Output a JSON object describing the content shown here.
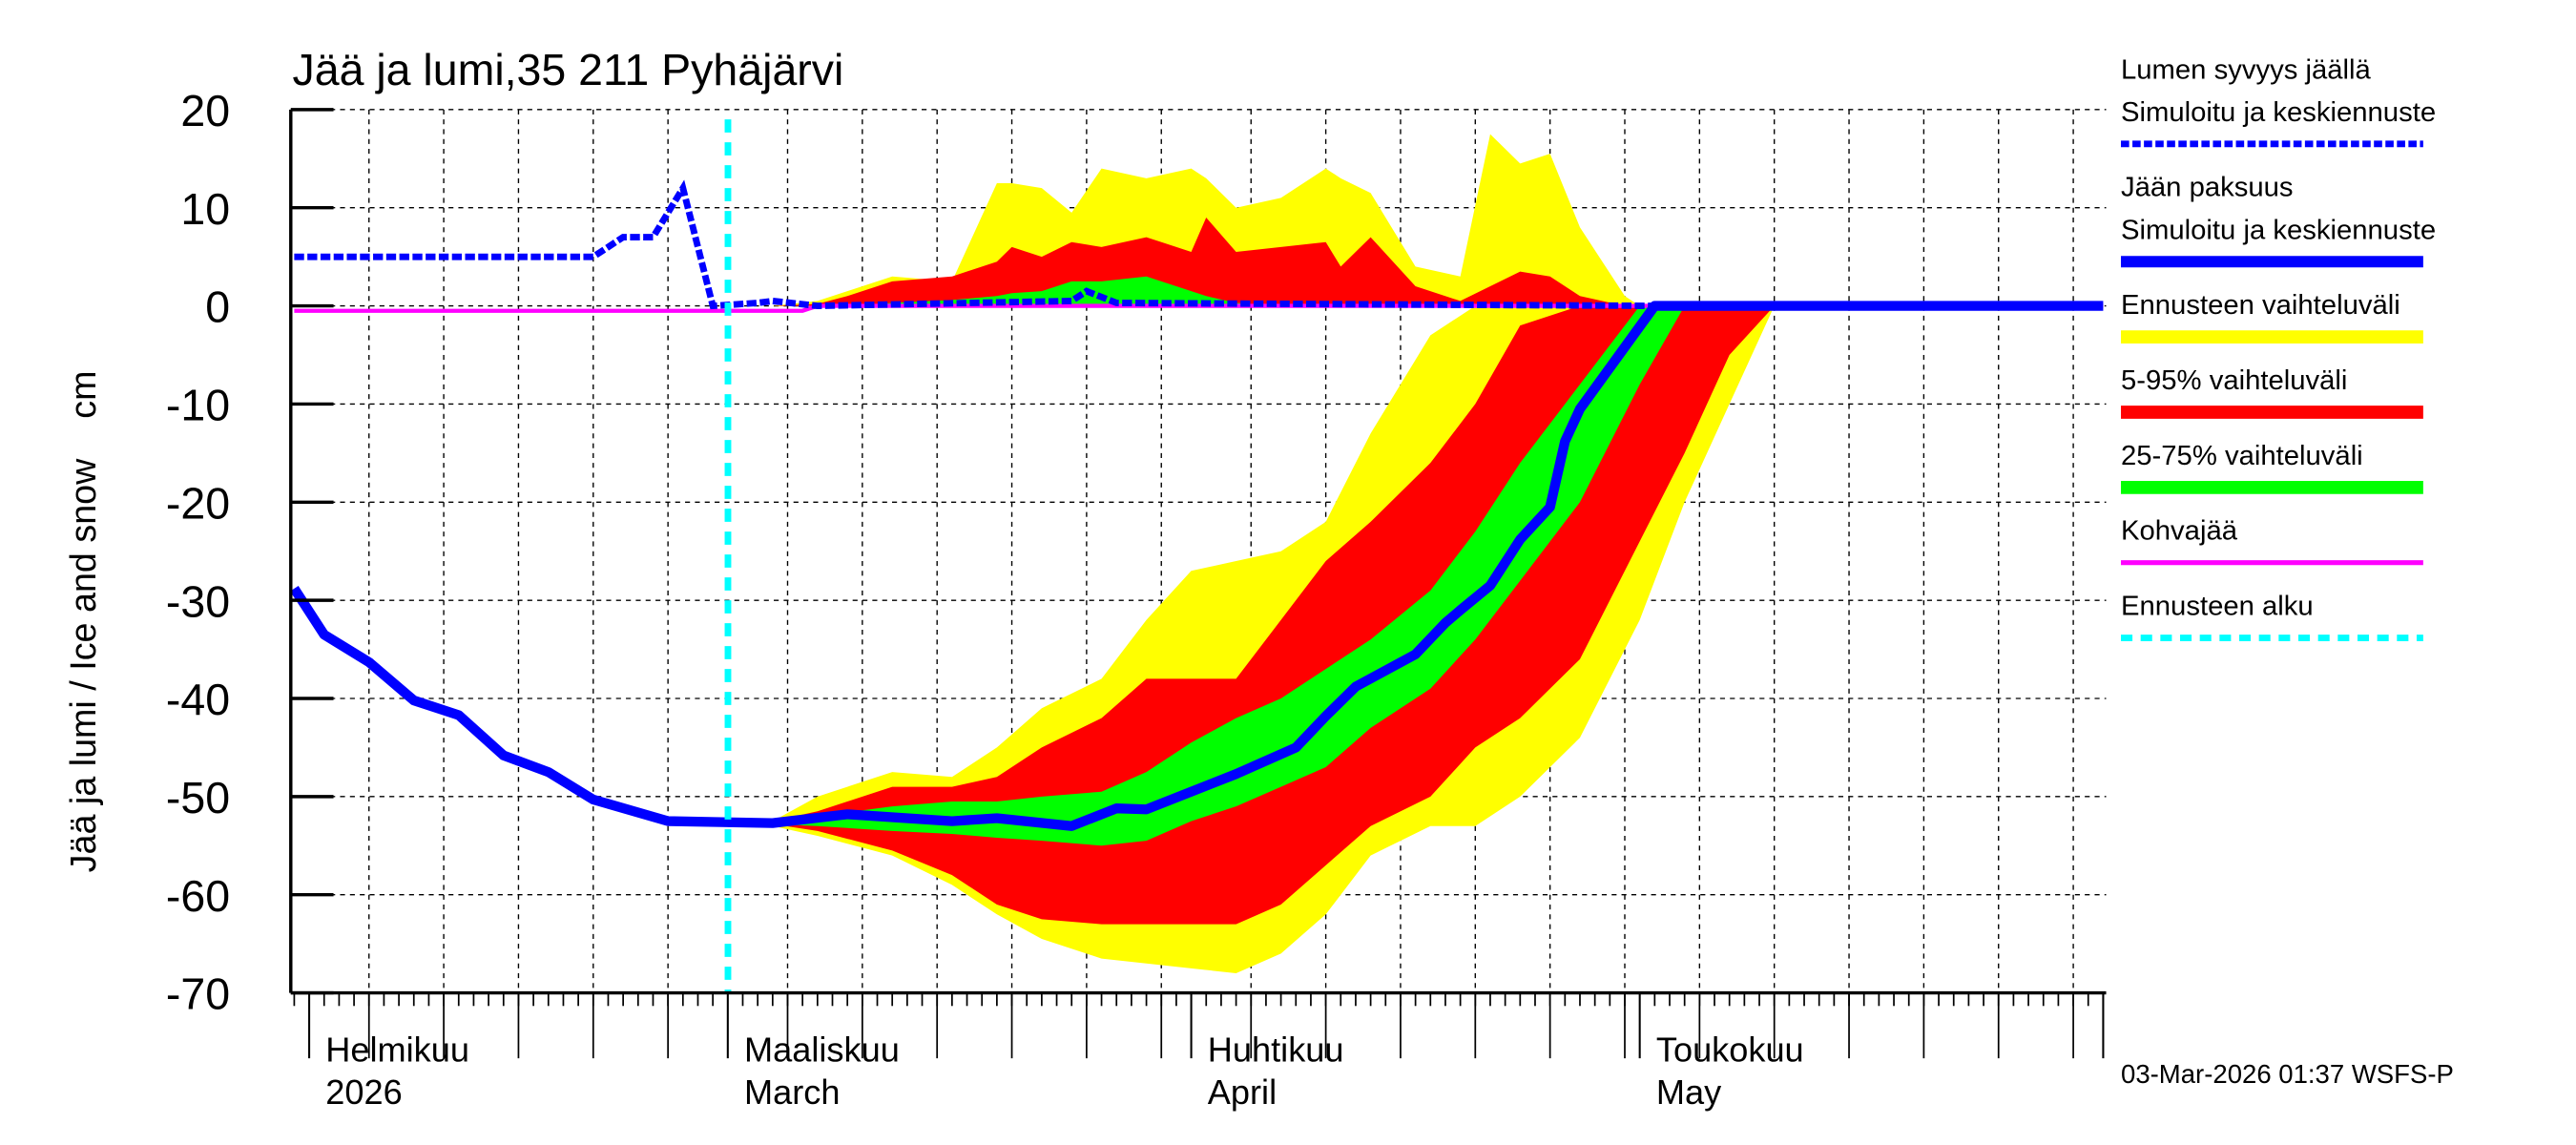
{
  "chart_data": {
    "type": "area",
    "title": "Jää ja lumi,35 211 Pyhäjärvi",
    "ylabel": "Jää ja lumi / Ice and snow    cm",
    "ylim": [
      -70,
      20
    ],
    "yticks": [
      20,
      10,
      0,
      -10,
      -20,
      -30,
      -40,
      -50,
      -60,
      -70
    ],
    "xlim": [
      "2026-01-31",
      "2026-06-01"
    ],
    "grid": true,
    "legend_position": "right",
    "month_labels": [
      {
        "fi": "Helmikuu",
        "en": "2026",
        "date": "2026-02-01"
      },
      {
        "fi": "Maaliskuu",
        "en": "March",
        "date": "2026-03-01"
      },
      {
        "fi": "Huhtikuu",
        "en": "April",
        "date": "2026-04-01"
      },
      {
        "fi": "Toukokuu",
        "en": "May",
        "date": "2026-05-01"
      }
    ],
    "forecast_start": "2026-03-02",
    "colors": {
      "snow": "#0000ff",
      "ice": "#0000ff",
      "range_full": "#ffff00",
      "range_5_95": "#ff0000",
      "range_25_75": "#00ff00",
      "slush_ice": "#ff00ff",
      "forecast_start": "#00ffff"
    },
    "legend": [
      {
        "lines": [
          "Lumen syvyys jäällä",
          "Simuloitu ja keskiennuste"
        ],
        "color": "#0000ff",
        "style": "dotted"
      },
      {
        "lines": [
          "Jään paksuus",
          "Simuloitu ja keskiennuste"
        ],
        "color": "#0000ff",
        "style": "solid-thick"
      },
      {
        "lines": [
          "Ennusteen vaihteluväli"
        ],
        "color": "#ffff00",
        "style": "band"
      },
      {
        "lines": [
          "5-95% vaihteluväli"
        ],
        "color": "#ff0000",
        "style": "band"
      },
      {
        "lines": [
          "25-75% vaihteluväli"
        ],
        "color": "#00ff00",
        "style": "band"
      },
      {
        "lines": [
          "Kohvajää"
        ],
        "color": "#ff00ff",
        "style": "solid"
      },
      {
        "lines": [
          "Ennusteen alku"
        ],
        "color": "#00ffff",
        "style": "dashed"
      }
    ],
    "ice_bands": {
      "dates": [
        "2026-03-04",
        "2026-03-07",
        "2026-03-12",
        "2026-03-16",
        "2026-03-19",
        "2026-03-22",
        "2026-03-26",
        "2026-03-29",
        "2026-04-01",
        "2026-04-04",
        "2026-04-07",
        "2026-04-10",
        "2026-04-13",
        "2026-04-17",
        "2026-04-20",
        "2026-04-23",
        "2026-04-27",
        "2026-05-01",
        "2026-05-04",
        "2026-05-07",
        "2026-05-10"
      ],
      "full_high": [
        -52.5,
        -50,
        -47.5,
        -48,
        -45,
        -41,
        -38,
        -32,
        -27,
        -26,
        -25,
        -22,
        -13,
        -3,
        0,
        0,
        0,
        0,
        0,
        0,
        0
      ],
      "full_low": [
        -53,
        -54,
        -56,
        -59,
        -62,
        -64.5,
        -66.5,
        -67,
        -67.5,
        -68,
        -66,
        -62,
        -56,
        -53,
        -53,
        -50,
        -44,
        -32,
        -20,
        -10,
        0
      ],
      "p5_95_high": [
        -52.5,
        -51.5,
        -49,
        -49,
        -48,
        -45,
        -42,
        -38,
        -38,
        -38,
        -32,
        -26,
        -22,
        -16,
        -10,
        -2,
        0,
        0,
        0,
        0,
        0
      ],
      "p5_95_low": [
        -52.8,
        -53.5,
        -55.5,
        -58,
        -61,
        -62.5,
        -63,
        -63,
        -63,
        -63,
        -61,
        -57,
        -53,
        -50,
        -45,
        -42,
        -36,
        -24,
        -15,
        -5,
        0
      ],
      "p25_75_high": [
        -52.6,
        -52,
        -51,
        -50.5,
        -50.5,
        -50,
        -49.5,
        -47.5,
        -44.5,
        -42,
        -40,
        -37,
        -34,
        -29,
        -23,
        -16,
        -8,
        0,
        0,
        0,
        0
      ],
      "p25_75_low": [
        -52.8,
        -53,
        -53.5,
        -53.8,
        -54.2,
        -54.5,
        -55,
        -54.5,
        -52.5,
        -51,
        -49,
        -47,
        -43,
        -39,
        -34,
        -28,
        -20,
        -8,
        0,
        0,
        0
      ]
    },
    "snow_bands": {
      "dates": [
        "2026-03-04",
        "2026-03-07",
        "2026-03-09",
        "2026-03-12",
        "2026-03-16",
        "2026-03-19",
        "2026-03-20",
        "2026-03-22",
        "2026-03-24",
        "2026-03-26",
        "2026-03-29",
        "2026-04-01",
        "2026-04-02",
        "2026-04-04",
        "2026-04-07",
        "2026-04-10",
        "2026-04-11",
        "2026-04-13",
        "2026-04-16",
        "2026-04-19",
        "2026-04-21",
        "2026-04-23",
        "2026-04-25",
        "2026-04-27",
        "2026-04-30",
        "2026-05-01"
      ],
      "full_high": [
        0,
        0.5,
        1.5,
        3,
        2.5,
        12.5,
        12.5,
        12,
        9.5,
        14,
        13,
        14,
        13,
        10,
        11,
        14,
        13,
        11.5,
        4,
        3,
        17.5,
        14.5,
        15.5,
        8,
        1,
        0
      ],
      "p5_95_high": [
        0,
        0.2,
        1,
        2.5,
        3,
        4.5,
        6,
        5,
        6.5,
        6,
        7,
        5.5,
        9,
        5.5,
        6,
        6.5,
        4,
        7,
        2,
        0.5,
        2,
        3.5,
        3,
        1,
        0,
        0
      ],
      "p25_75_high": [
        0,
        0,
        0,
        0.3,
        0.6,
        1,
        1.3,
        1.5,
        2.5,
        2.5,
        3,
        1.5,
        1,
        0.3,
        0,
        0,
        0,
        0,
        0,
        0,
        0,
        0,
        0,
        0,
        0,
        0
      ]
    },
    "snow_median": {
      "dates": [
        "2026-01-31",
        "2026-02-20",
        "2026-02-22",
        "2026-02-24",
        "2026-02-26",
        "2026-02-27",
        "2026-02-28",
        "2026-03-03",
        "2026-03-04",
        "2026-03-07",
        "2026-03-24",
        "2026-03-25",
        "2026-03-27",
        "2026-05-02"
      ],
      "values": [
        5,
        5,
        7,
        7,
        12,
        6,
        0,
        0.3,
        0.5,
        0,
        0.5,
        1.5,
        0.3,
        0
      ]
    },
    "ice_median": {
      "dates": [
        "2026-01-31",
        "2026-02-02",
        "2026-02-05",
        "2026-02-08",
        "2026-02-11",
        "2026-02-14",
        "2026-02-17",
        "2026-02-20",
        "2026-02-25",
        "2026-03-04",
        "2026-03-09",
        "2026-03-16",
        "2026-03-19",
        "2026-03-24",
        "2026-03-27",
        "2026-03-29",
        "2026-04-04",
        "2026-04-08",
        "2026-04-10",
        "2026-04-12",
        "2026-04-16",
        "2026-04-18",
        "2026-04-19",
        "2026-04-21",
        "2026-04-23",
        "2026-04-25",
        "2026-04-26",
        "2026-04-27",
        "2026-05-02",
        "2026-06-01"
      ],
      "values": [
        -28.8,
        -33.5,
        -36.3,
        -40.2,
        -41.7,
        -45.8,
        -47.5,
        -50.3,
        -52.5,
        -52.7,
        -51.8,
        -52.5,
        -52.2,
        -53,
        -51.2,
        -51.3,
        -47.7,
        -45,
        -41.8,
        -38.8,
        -35.5,
        -32.3,
        -31,
        -28.5,
        -23.8,
        -20.5,
        -13.8,
        -10.5,
        0,
        0
      ]
    },
    "slush_ice": {
      "dates": [
        "2026-01-31",
        "2026-03-06",
        "2026-03-07",
        "2026-06-01"
      ],
      "values": [
        -0.5,
        -0.5,
        0,
        0
      ]
    }
  },
  "timestamp": "03-Mar-2026 01:37 WSFS-P"
}
